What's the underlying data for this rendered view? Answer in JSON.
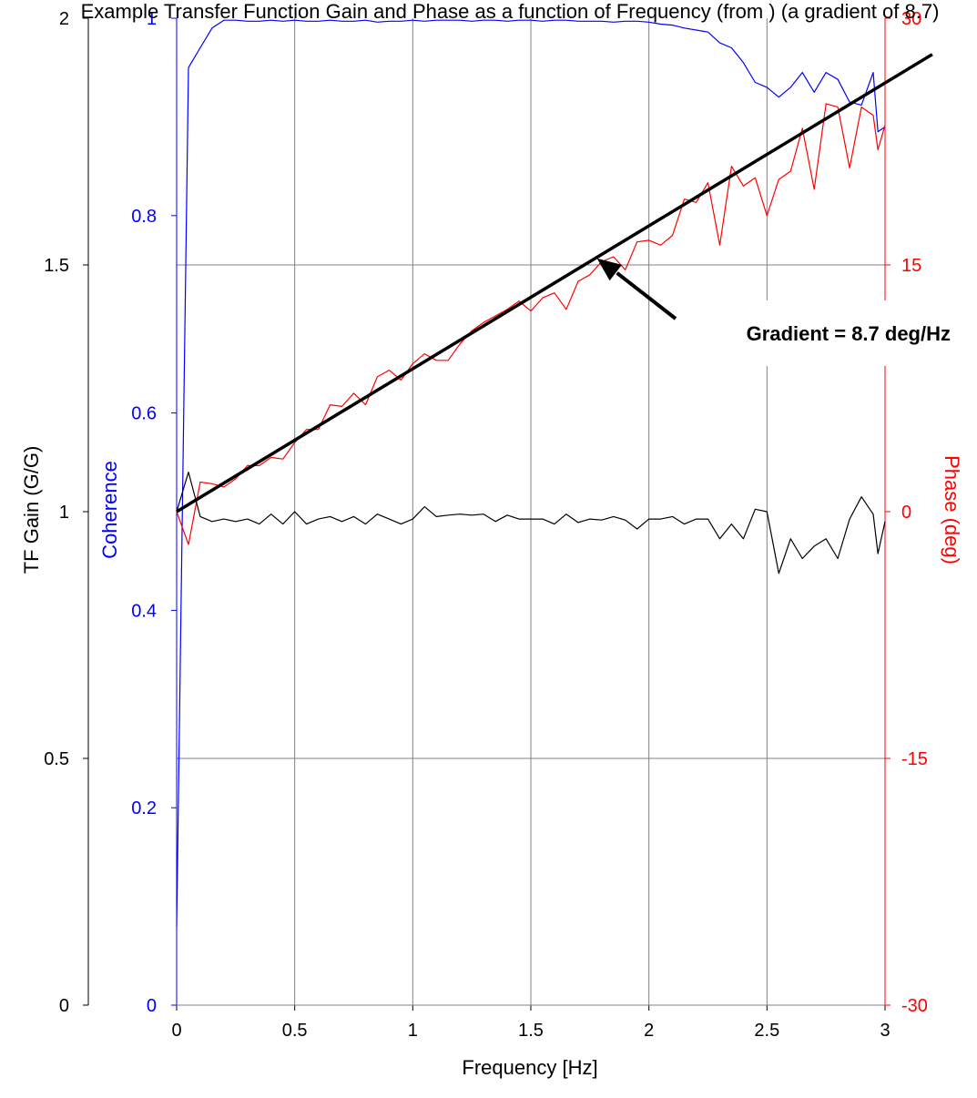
{
  "chart_data": {
    "type": "line",
    "title": "Example Transfer Function Gain and Phase as a function of Frequency (from ) (a gradient of 8.7)",
    "xlabel": "Frequency [Hz]",
    "xlim": [
      0,
      3
    ],
    "x_ticks": [
      "0",
      "0.5",
      "1",
      "1.5",
      "2",
      "2.5",
      "3"
    ],
    "grid": true,
    "axes": {
      "gain": {
        "label": "TF Gain (G/G)",
        "range": [
          0,
          2
        ],
        "ticks": [
          "0",
          "0.5",
          "1",
          "1.5",
          "2"
        ],
        "color": "#000000"
      },
      "coherence": {
        "label": "Coherence",
        "range": [
          0,
          1
        ],
        "ticks": [
          "0",
          "0.2",
          "0.4",
          "0.6",
          "0.8",
          "1"
        ],
        "color": "#0000ff"
      },
      "phase": {
        "label": "Phase (deg)",
        "range": [
          -30,
          30
        ],
        "ticks": [
          "-30",
          "-15",
          "0",
          "15",
          "30"
        ],
        "color": "#ff0000"
      }
    },
    "series": [
      {
        "axis": "coherence",
        "color": "#0000ff",
        "x": [
          0,
          0.05,
          0.1,
          0.15,
          0.2,
          0.25,
          0.3,
          0.35,
          0.4,
          0.45,
          0.5,
          0.55,
          0.6,
          0.65,
          0.7,
          0.75,
          0.8,
          0.85,
          0.9,
          0.95,
          1.0,
          1.05,
          1.1,
          1.15,
          1.2,
          1.25,
          1.3,
          1.35,
          1.4,
          1.45,
          1.5,
          1.55,
          1.6,
          1.65,
          1.7,
          1.75,
          1.8,
          1.85,
          1.9,
          1.95,
          2.0,
          2.05,
          2.1,
          2.15,
          2.2,
          2.25,
          2.3,
          2.35,
          2.4,
          2.45,
          2.5,
          2.55,
          2.6,
          2.65,
          2.7,
          2.75,
          2.8,
          2.85,
          2.9,
          2.95,
          2.97,
          3.0
        ],
        "y": [
          0.08,
          0.95,
          0.97,
          0.99,
          0.998,
          0.998,
          0.997,
          0.997,
          0.998,
          0.997,
          0.998,
          0.997,
          0.997,
          0.998,
          0.997,
          0.997,
          0.998,
          0.996,
          0.997,
          0.997,
          0.998,
          0.997,
          0.998,
          0.998,
          0.998,
          0.997,
          0.998,
          0.998,
          0.997,
          0.998,
          0.998,
          0.997,
          0.998,
          0.998,
          0.997,
          0.997,
          0.997,
          0.996,
          0.997,
          0.997,
          0.996,
          0.994,
          0.993,
          0.99,
          0.988,
          0.986,
          0.975,
          0.97,
          0.955,
          0.935,
          0.93,
          0.92,
          0.93,
          0.945,
          0.925,
          0.945,
          0.938,
          0.915,
          0.912,
          0.945,
          0.885,
          0.89
        ]
      },
      {
        "axis": "phase",
        "color": "#ff0000",
        "x": [
          0,
          0.05,
          0.1,
          0.15,
          0.2,
          0.25,
          0.3,
          0.35,
          0.4,
          0.45,
          0.5,
          0.55,
          0.6,
          0.65,
          0.7,
          0.75,
          0.8,
          0.85,
          0.9,
          0.95,
          1.0,
          1.05,
          1.1,
          1.15,
          1.2,
          1.25,
          1.3,
          1.35,
          1.4,
          1.45,
          1.5,
          1.55,
          1.6,
          1.65,
          1.7,
          1.75,
          1.8,
          1.85,
          1.9,
          1.95,
          2.0,
          2.05,
          2.1,
          2.15,
          2.2,
          2.25,
          2.3,
          2.35,
          2.4,
          2.45,
          2.5,
          2.55,
          2.6,
          2.65,
          2.7,
          2.75,
          2.8,
          2.85,
          2.9,
          2.95,
          2.97,
          3.0
        ],
        "y": [
          0,
          -2,
          1.8,
          1.7,
          1.5,
          2,
          2.8,
          2.8,
          3.3,
          3.2,
          4.2,
          5,
          5,
          6.5,
          6.4,
          7.2,
          6.5,
          8.2,
          8.6,
          8,
          9,
          9.6,
          9.2,
          9.2,
          10.2,
          11,
          11.5,
          11.9,
          12.3,
          12.8,
          12.2,
          13,
          13.3,
          12.3,
          14,
          14.4,
          15.2,
          15.5,
          14.7,
          16.4,
          16.5,
          16.2,
          16.8,
          19,
          18.8,
          20,
          16.2,
          21,
          19.8,
          20.3,
          18,
          20.2,
          20.7,
          23.3,
          19.6,
          24.8,
          24.6,
          20.9,
          24.6,
          24.1,
          22,
          23.5
        ]
      },
      {
        "axis": "gain",
        "color": "#000000",
        "x": [
          0,
          0.05,
          0.1,
          0.15,
          0.2,
          0.25,
          0.3,
          0.35,
          0.4,
          0.45,
          0.5,
          0.55,
          0.6,
          0.65,
          0.7,
          0.75,
          0.8,
          0.85,
          0.9,
          0.95,
          1.0,
          1.05,
          1.1,
          1.15,
          1.2,
          1.25,
          1.3,
          1.35,
          1.4,
          1.45,
          1.5,
          1.55,
          1.6,
          1.65,
          1.7,
          1.75,
          1.8,
          1.85,
          1.9,
          1.95,
          2.0,
          2.05,
          2.1,
          2.15,
          2.2,
          2.25,
          2.3,
          2.35,
          2.4,
          2.45,
          2.5,
          2.55,
          2.6,
          2.65,
          2.7,
          2.75,
          2.8,
          2.85,
          2.9,
          2.95,
          2.97,
          3.0
        ],
        "y": [
          1.0,
          1.08,
          0.99,
          0.98,
          0.985,
          0.98,
          0.985,
          0.975,
          0.995,
          0.975,
          1.0,
          0.975,
          0.985,
          0.99,
          0.98,
          0.99,
          0.975,
          0.995,
          0.985,
          0.975,
          0.985,
          1.01,
          0.99,
          0.993,
          0.995,
          0.993,
          0.995,
          0.98,
          0.993,
          0.985,
          0.985,
          0.985,
          0.975,
          0.995,
          0.978,
          0.985,
          0.983,
          0.99,
          0.983,
          0.965,
          0.985,
          0.985,
          0.99,
          0.975,
          0.985,
          0.985,
          0.945,
          0.975,
          0.945,
          1.005,
          1.0,
          0.875,
          0.945,
          0.905,
          0.93,
          0.945,
          0.905,
          0.985,
          1.03,
          0.995,
          0.915,
          0.98
        ]
      },
      {
        "axis": "phase",
        "color": "#000000",
        "kind": "fit",
        "x": [
          0,
          3.2
        ],
        "y": [
          0,
          27.8
        ]
      }
    ],
    "annotation": {
      "text": "Gradient = 8.7 deg/Hz",
      "points_to": [
        1.78,
        15.4
      ]
    }
  }
}
